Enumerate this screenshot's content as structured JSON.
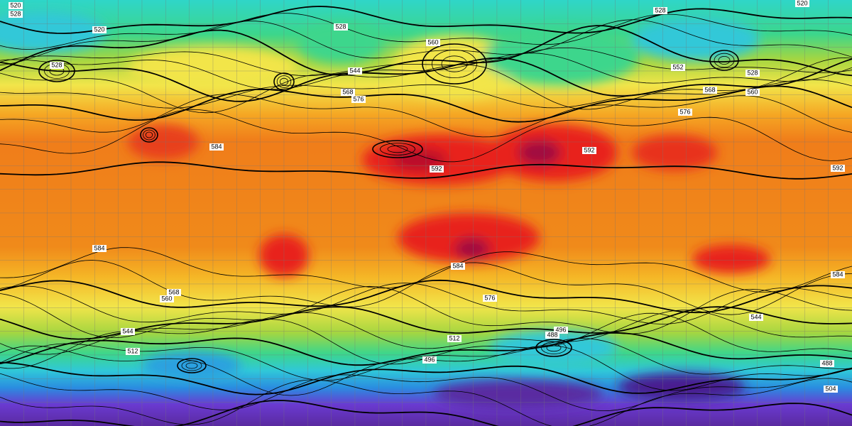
{
  "map": {
    "labels": [
      "520",
      "528",
      "520",
      "528",
      "528",
      "560",
      "544",
      "568",
      "576",
      "584",
      "592",
      "592",
      "592",
      "552",
      "528",
      "568",
      "560",
      "576",
      "584",
      "584",
      "576",
      "568",
      "560",
      "544",
      "512",
      "496",
      "488",
      "512",
      "496",
      "488",
      "504",
      "520",
      "528",
      "544",
      "584"
    ]
  }
}
